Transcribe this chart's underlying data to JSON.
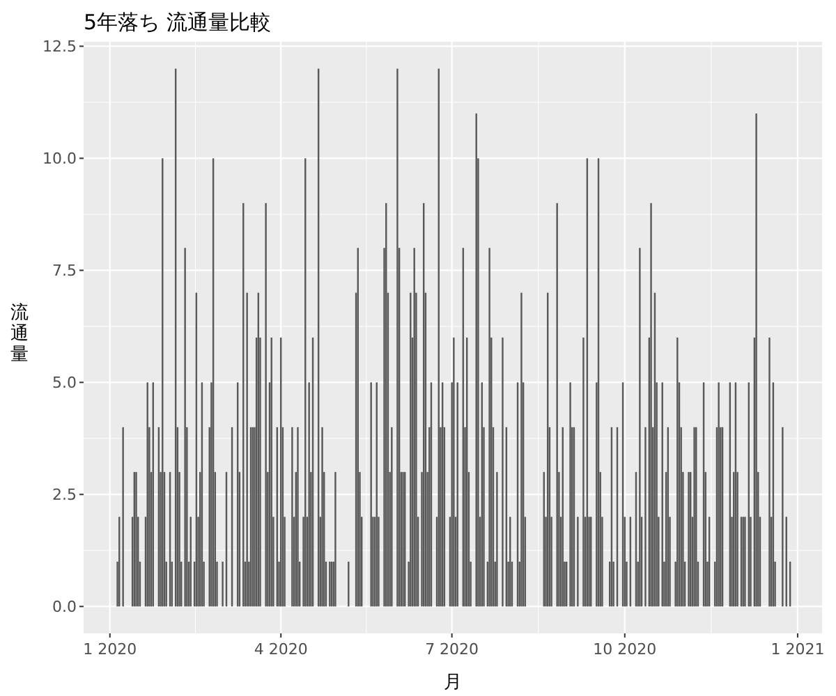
{
  "chart_data": {
    "type": "bar",
    "title": "5年落ち 流通量比較",
    "xlabel": "月",
    "ylabel": "流通量",
    "color": "#595959",
    "grid": true,
    "xlim": [
      "2019-12-18",
      "2021-01-14"
    ],
    "ylim": [
      -0.6,
      12.6
    ],
    "xticks": [
      {
        "value": "2020-01-01",
        "label": "1 2020"
      },
      {
        "value": "2020-04-01",
        "label": "4 2020"
      },
      {
        "value": "2020-07-01",
        "label": "7 2020"
      },
      {
        "value": "2020-10-01",
        "label": "10 2020"
      },
      {
        "value": "2021-01-01",
        "label": "1 2021"
      }
    ],
    "yticks": [
      {
        "value": 0,
        "label": "0.0"
      },
      {
        "value": 2.5,
        "label": "2.5"
      },
      {
        "value": 5,
        "label": "5.0"
      },
      {
        "value": 7.5,
        "label": "7.5"
      },
      {
        "value": 10,
        "label": "10.0"
      },
      {
        "value": 12.5,
        "label": "12.5"
      }
    ],
    "x": [
      "2020-01-05",
      "2020-01-06",
      "2020-01-08",
      "2020-01-13",
      "2020-01-14",
      "2020-01-15",
      "2020-01-16",
      "2020-01-17",
      "2020-01-20",
      "2020-01-21",
      "2020-01-22",
      "2020-01-23",
      "2020-01-24",
      "2020-01-27",
      "2020-01-28",
      "2020-01-29",
      "2020-01-30",
      "2020-01-31",
      "2020-02-02",
      "2020-02-03",
      "2020-02-05",
      "2020-02-06",
      "2020-02-07",
      "2020-02-08",
      "2020-02-10",
      "2020-02-11",
      "2020-02-12",
      "2020-02-13",
      "2020-02-15",
      "2020-02-16",
      "2020-02-17",
      "2020-02-18",
      "2020-02-19",
      "2020-02-20",
      "2020-02-23",
      "2020-02-24",
      "2020-02-25",
      "2020-02-26",
      "2020-02-27",
      "2020-03-01",
      "2020-03-03",
      "2020-03-06",
      "2020-03-09",
      "2020-03-10",
      "2020-03-12",
      "2020-03-13",
      "2020-03-14",
      "2020-03-15",
      "2020-03-16",
      "2020-03-17",
      "2020-03-18",
      "2020-03-19",
      "2020-03-20",
      "2020-03-21",
      "2020-03-24",
      "2020-03-25",
      "2020-03-26",
      "2020-03-27",
      "2020-03-28",
      "2020-03-30",
      "2020-03-31",
      "2020-04-01",
      "2020-04-02",
      "2020-04-03",
      "2020-04-07",
      "2020-04-08",
      "2020-04-09",
      "2020-04-10",
      "2020-04-11",
      "2020-04-13",
      "2020-04-14",
      "2020-04-15",
      "2020-04-16",
      "2020-04-17",
      "2020-04-18",
      "2020-04-21",
      "2020-04-22",
      "2020-04-23",
      "2020-04-24",
      "2020-04-25",
      "2020-04-27",
      "2020-04-28",
      "2020-04-29",
      "2020-04-30",
      "2020-05-07",
      "2020-05-11",
      "2020-05-12",
      "2020-05-13",
      "2020-05-14",
      "2020-05-19",
      "2020-05-20",
      "2020-05-21",
      "2020-05-22",
      "2020-05-23",
      "2020-05-26",
      "2020-05-27",
      "2020-05-28",
      "2020-05-29",
      "2020-05-30",
      "2020-06-02",
      "2020-06-03",
      "2020-06-04",
      "2020-06-05",
      "2020-06-06",
      "2020-06-08",
      "2020-06-09",
      "2020-06-10",
      "2020-06-11",
      "2020-06-12",
      "2020-06-13",
      "2020-06-15",
      "2020-06-16",
      "2020-06-17",
      "2020-06-18",
      "2020-06-19",
      "2020-06-20",
      "2020-06-23",
      "2020-06-24",
      "2020-06-25",
      "2020-06-26",
      "2020-06-27",
      "2020-06-30",
      "2020-07-01",
      "2020-07-02",
      "2020-07-03",
      "2020-07-04",
      "2020-07-07",
      "2020-07-08",
      "2020-07-09",
      "2020-07-10",
      "2020-07-11",
      "2020-07-14",
      "2020-07-15",
      "2020-07-16",
      "2020-07-17",
      "2020-07-18",
      "2020-07-20",
      "2020-07-21",
      "2020-07-22",
      "2020-07-23",
      "2020-07-24",
      "2020-07-25",
      "2020-07-28",
      "2020-07-30",
      "2020-07-31",
      "2020-08-01",
      "2020-08-02",
      "2020-08-05",
      "2020-08-06",
      "2020-08-07",
      "2020-08-08",
      "2020-08-09",
      "2020-08-19",
      "2020-08-20",
      "2020-08-21",
      "2020-08-22",
      "2020-08-23",
      "2020-08-26",
      "2020-08-27",
      "2020-08-28",
      "2020-08-29",
      "2020-08-30",
      "2020-08-31",
      "2020-09-02",
      "2020-09-03",
      "2020-09-04",
      "2020-09-06",
      "2020-09-09",
      "2020-09-10",
      "2020-09-11",
      "2020-09-12",
      "2020-09-13",
      "2020-09-16",
      "2020-09-17",
      "2020-09-18",
      "2020-09-19",
      "2020-09-23",
      "2020-09-24",
      "2020-09-25",
      "2020-09-27",
      "2020-09-30",
      "2020-10-01",
      "2020-10-02",
      "2020-10-04",
      "2020-10-07",
      "2020-10-08",
      "2020-10-09",
      "2020-10-10",
      "2020-10-12",
      "2020-10-14",
      "2020-10-15",
      "2020-10-16",
      "2020-10-17",
      "2020-10-18",
      "2020-10-19",
      "2020-10-21",
      "2020-10-22",
      "2020-10-23",
      "2020-10-24",
      "2020-10-25",
      "2020-10-28",
      "2020-10-29",
      "2020-10-30",
      "2020-10-31",
      "2020-11-01",
      "2020-11-02",
      "2020-11-04",
      "2020-11-05",
      "2020-11-06",
      "2020-11-07",
      "2020-11-08",
      "2020-11-09",
      "2020-11-12",
      "2020-11-13",
      "2020-11-14",
      "2020-11-15",
      "2020-11-18",
      "2020-11-19",
      "2020-11-20",
      "2020-11-21",
      "2020-11-22",
      "2020-11-26",
      "2020-11-27",
      "2020-11-28",
      "2020-11-29",
      "2020-11-30",
      "2020-12-02",
      "2020-12-03",
      "2020-12-04",
      "2020-12-06",
      "2020-12-07",
      "2020-12-09",
      "2020-12-10",
      "2020-12-11",
      "2020-12-12",
      "2020-12-17",
      "2020-12-18",
      "2020-12-19",
      "2020-12-20",
      "2020-12-24",
      "2020-12-26",
      "2020-12-28"
    ],
    "values": [
      1,
      2,
      4,
      2,
      3,
      3,
      2,
      1,
      2,
      5,
      4,
      3,
      5,
      4,
      3,
      10,
      3,
      1,
      3,
      1,
      12,
      4,
      3,
      1,
      8,
      4,
      1,
      2,
      1,
      7,
      2,
      3,
      5,
      1,
      4,
      5,
      10,
      3,
      1,
      1,
      3,
      4,
      5,
      3,
      9,
      1,
      7,
      1,
      4,
      4,
      4,
      6,
      7,
      6,
      9,
      3,
      5,
      6,
      2,
      4,
      1,
      6,
      4,
      2,
      4,
      2,
      3,
      4,
      1,
      2,
      10,
      2,
      5,
      3,
      6,
      12,
      2,
      4,
      3,
      1,
      1,
      1,
      1,
      3,
      1,
      7,
      8,
      3,
      2,
      5,
      2,
      2,
      5,
      2,
      8,
      9,
      7,
      3,
      4,
      12,
      8,
      3,
      3,
      3,
      1,
      7,
      6,
      8,
      7,
      2,
      3,
      9,
      7,
      3,
      4,
      5,
      2,
      12,
      4,
      5,
      4,
      2,
      5,
      6,
      2,
      5,
      8,
      4,
      6,
      3,
      1,
      11,
      10,
      2,
      5,
      4,
      1,
      8,
      6,
      4,
      1,
      3,
      6,
      4,
      1,
      2,
      1,
      5,
      1,
      7,
      5,
      2,
      3,
      2,
      7,
      4,
      2,
      9,
      3,
      2,
      4,
      1,
      1,
      5,
      4,
      4,
      2,
      6,
      2,
      10,
      2,
      2,
      5,
      10,
      3,
      2,
      1,
      4,
      1,
      4,
      5,
      2,
      1,
      2,
      3,
      1,
      8,
      2,
      4,
      6,
      9,
      4,
      7,
      5,
      2,
      5,
      1,
      3,
      4,
      2,
      1,
      6,
      5,
      4,
      3,
      1,
      3,
      3,
      2,
      4,
      4,
      1,
      5,
      3,
      1,
      2,
      1,
      4,
      5,
      4,
      4,
      5,
      2,
      3,
      5,
      3,
      2,
      2,
      2,
      5,
      2,
      6,
      11,
      3,
      2,
      6,
      2,
      5,
      1,
      4,
      2,
      1
    ]
  }
}
